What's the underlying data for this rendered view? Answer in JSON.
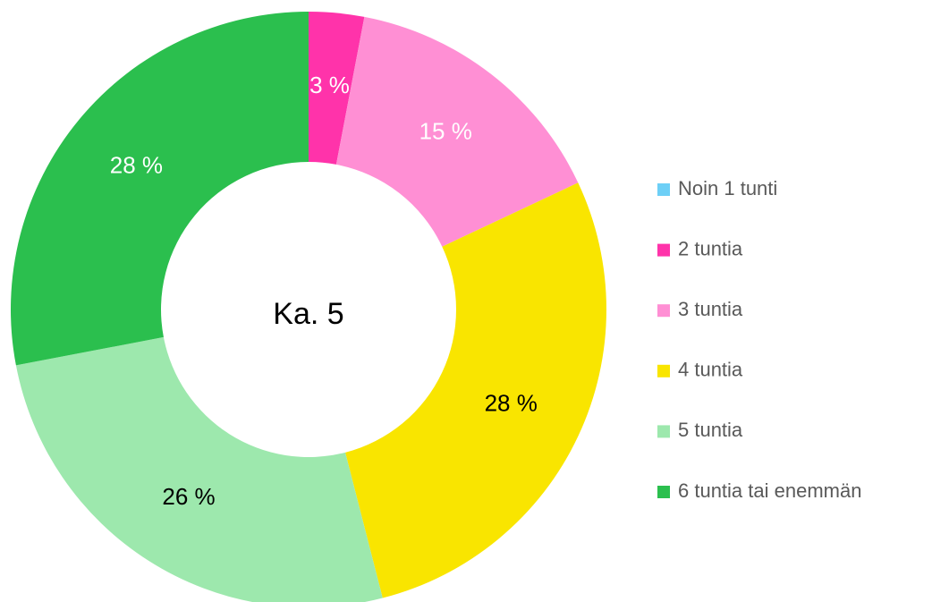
{
  "chart_data": {
    "type": "donut",
    "categories": [
      "Noin 1 tunti",
      "2 tuntia",
      "3 tuntia",
      "4 tuntia",
      "5 tuntia",
      "6 tuntia tai enemmän"
    ],
    "values": [
      0,
      3,
      15,
      28,
      26,
      28
    ],
    "value_labels": [
      null,
      "3 %",
      "15 %",
      "28 %",
      "26 %",
      "28 %"
    ],
    "colors": [
      "#6dcff6",
      "#ff33aa",
      "#ff8fd4",
      "#f9e500",
      "#9de8ad",
      "#2bbf4e"
    ],
    "label_colors": [
      "#ffffff",
      "#ffffff",
      "#ffffff",
      "#000000",
      "#000000",
      "#ffffff"
    ],
    "center_text": "Ka. 5",
    "legend": "right"
  }
}
